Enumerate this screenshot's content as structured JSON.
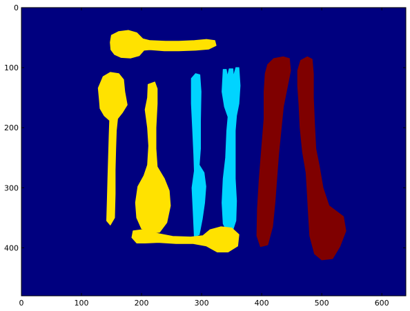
{
  "chart_data": {
    "type": "heatmap",
    "title": "",
    "xlabel": "",
    "ylabel": "",
    "xlim": [
      0,
      640
    ],
    "ylim": [
      480,
      0
    ],
    "x_ticks": [
      0,
      100,
      200,
      300,
      400,
      500,
      600
    ],
    "y_ticks": [
      0,
      100,
      200,
      300,
      400
    ],
    "grid": false,
    "legend": "none",
    "colors": {
      "background": "#00007f",
      "spoon": "#ffe200",
      "fork": "#00d4ff",
      "knife": "#7f0000",
      "axes": "#000000"
    },
    "regions": [
      {
        "label": "spoon",
        "color_key": "spoon",
        "outline": [
          [
            148,
            58
          ],
          [
            150,
            46
          ],
          [
            162,
            40
          ],
          [
            178,
            38
          ],
          [
            192,
            42
          ],
          [
            202,
            52
          ],
          [
            214,
            55
          ],
          [
            240,
            56
          ],
          [
            262,
            56
          ],
          [
            288,
            55
          ],
          [
            308,
            53
          ],
          [
            322,
            55
          ],
          [
            324,
            63
          ],
          [
            312,
            69
          ],
          [
            290,
            71
          ],
          [
            262,
            72
          ],
          [
            238,
            72
          ],
          [
            214,
            70
          ],
          [
            204,
            71
          ],
          [
            196,
            80
          ],
          [
            182,
            84
          ],
          [
            166,
            83
          ],
          [
            155,
            78
          ],
          [
            149,
            70
          ]
        ]
      },
      {
        "label": "spoon",
        "color_key": "spoon",
        "outline": [
          [
            130,
            155
          ],
          [
            128,
            134
          ],
          [
            136,
            115
          ],
          [
            148,
            108
          ],
          [
            162,
            110
          ],
          [
            170,
            120
          ],
          [
            172,
            140
          ],
          [
            176,
            162
          ],
          [
            168,
            175
          ],
          [
            160,
            185
          ],
          [
            158,
            205
          ],
          [
            157,
            235
          ],
          [
            156,
            270
          ],
          [
            156,
            310
          ],
          [
            155,
            350
          ],
          [
            148,
            362
          ],
          [
            142,
            355
          ],
          [
            143,
            320
          ],
          [
            144,
            285
          ],
          [
            145,
            250
          ],
          [
            146,
            215
          ],
          [
            147,
            188
          ],
          [
            138,
            180
          ],
          [
            131,
            168
          ]
        ]
      },
      {
        "label": "spoon",
        "color_key": "spoon",
        "outline": [
          [
            211,
            128
          ],
          [
            222,
            124
          ],
          [
            226,
            135
          ],
          [
            226,
            160
          ],
          [
            224,
            200
          ],
          [
            224,
            235
          ],
          [
            226,
            265
          ],
          [
            238,
            285
          ],
          [
            246,
            305
          ],
          [
            248,
            330
          ],
          [
            242,
            358
          ],
          [
            230,
            374
          ],
          [
            214,
            376
          ],
          [
            200,
            368
          ],
          [
            192,
            350
          ],
          [
            190,
            325
          ],
          [
            194,
            298
          ],
          [
            204,
            280
          ],
          [
            210,
            262
          ],
          [
            212,
            230
          ],
          [
            210,
            200
          ],
          [
            206,
            170
          ],
          [
            210,
            150
          ]
        ]
      },
      {
        "label": "fork",
        "color_key": "fork",
        "outline": [
          [
            283,
            118
          ],
          [
            290,
            110
          ],
          [
            297,
            112
          ],
          [
            299,
            140
          ],
          [
            298,
            190
          ],
          [
            298,
            235
          ],
          [
            296,
            262
          ],
          [
            304,
            275
          ],
          [
            307,
            298
          ],
          [
            305,
            325
          ],
          [
            301,
            352
          ],
          [
            296,
            378
          ],
          [
            288,
            382
          ],
          [
            286,
            340
          ],
          [
            284,
            300
          ],
          [
            288,
            272
          ],
          [
            287,
            245
          ],
          [
            285,
            200
          ],
          [
            283,
            160
          ]
        ]
      },
      {
        "label": "fork",
        "color_key": "fork",
        "outline": [
          [
            336,
            103
          ],
          [
            341,
            103
          ],
          [
            343,
            115
          ],
          [
            346,
            102
          ],
          [
            352,
            102
          ],
          [
            353,
            115
          ],
          [
            357,
            100
          ],
          [
            362,
            100
          ],
          [
            364,
            130
          ],
          [
            362,
            160
          ],
          [
            358,
            180
          ],
          [
            356,
            205
          ],
          [
            356,
            245
          ],
          [
            356,
            285
          ],
          [
            358,
            322
          ],
          [
            357,
            355
          ],
          [
            352,
            370
          ],
          [
            342,
            372
          ],
          [
            336,
            360
          ],
          [
            334,
            325
          ],
          [
            336,
            285
          ],
          [
            340,
            250
          ],
          [
            342,
            205
          ],
          [
            344,
            182
          ],
          [
            338,
            165
          ],
          [
            334,
            140
          ]
        ]
      },
      {
        "label": "knife",
        "color_key": "knife",
        "outline": [
          [
            410,
            95
          ],
          [
            420,
            85
          ],
          [
            436,
            82
          ],
          [
            446,
            85
          ],
          [
            448,
            105
          ],
          [
            442,
            135
          ],
          [
            436,
            165
          ],
          [
            432,
            205
          ],
          [
            428,
            245
          ],
          [
            425,
            285
          ],
          [
            422,
            325
          ],
          [
            418,
            365
          ],
          [
            410,
            395
          ],
          [
            398,
            398
          ],
          [
            392,
            380
          ],
          [
            393,
            335
          ],
          [
            396,
            285
          ],
          [
            400,
            235
          ],
          [
            404,
            185
          ],
          [
            404,
            140
          ],
          [
            406,
            110
          ]
        ]
      },
      {
        "label": "knife",
        "color_key": "knife",
        "outline": [
          [
            460,
            105
          ],
          [
            465,
            88
          ],
          [
            476,
            82
          ],
          [
            484,
            86
          ],
          [
            486,
            110
          ],
          [
            486,
            150
          ],
          [
            488,
            195
          ],
          [
            490,
            235
          ],
          [
            496,
            265
          ],
          [
            502,
            300
          ],
          [
            512,
            330
          ],
          [
            536,
            348
          ],
          [
            540,
            372
          ],
          [
            530,
            398
          ],
          [
            518,
            418
          ],
          [
            500,
            420
          ],
          [
            488,
            410
          ],
          [
            480,
            380
          ],
          [
            478,
            345
          ],
          [
            476,
            310
          ],
          [
            474,
            275
          ],
          [
            468,
            240
          ],
          [
            464,
            200
          ],
          [
            462,
            160
          ],
          [
            460,
            130
          ]
        ]
      },
      {
        "label": "spoon",
        "color_key": "spoon",
        "outline": [
          [
            184,
            383
          ],
          [
            186,
            372
          ],
          [
            200,
            370
          ],
          [
            225,
            376
          ],
          [
            252,
            381
          ],
          [
            282,
            382
          ],
          [
            302,
            380
          ],
          [
            314,
            370
          ],
          [
            332,
            365
          ],
          [
            350,
            367
          ],
          [
            362,
            378
          ],
          [
            360,
            397
          ],
          [
            344,
            407
          ],
          [
            326,
            407
          ],
          [
            308,
            397
          ],
          [
            286,
            393
          ],
          [
            258,
            393
          ],
          [
            228,
            391
          ],
          [
            206,
            392
          ],
          [
            192,
            392
          ]
        ]
      }
    ]
  }
}
